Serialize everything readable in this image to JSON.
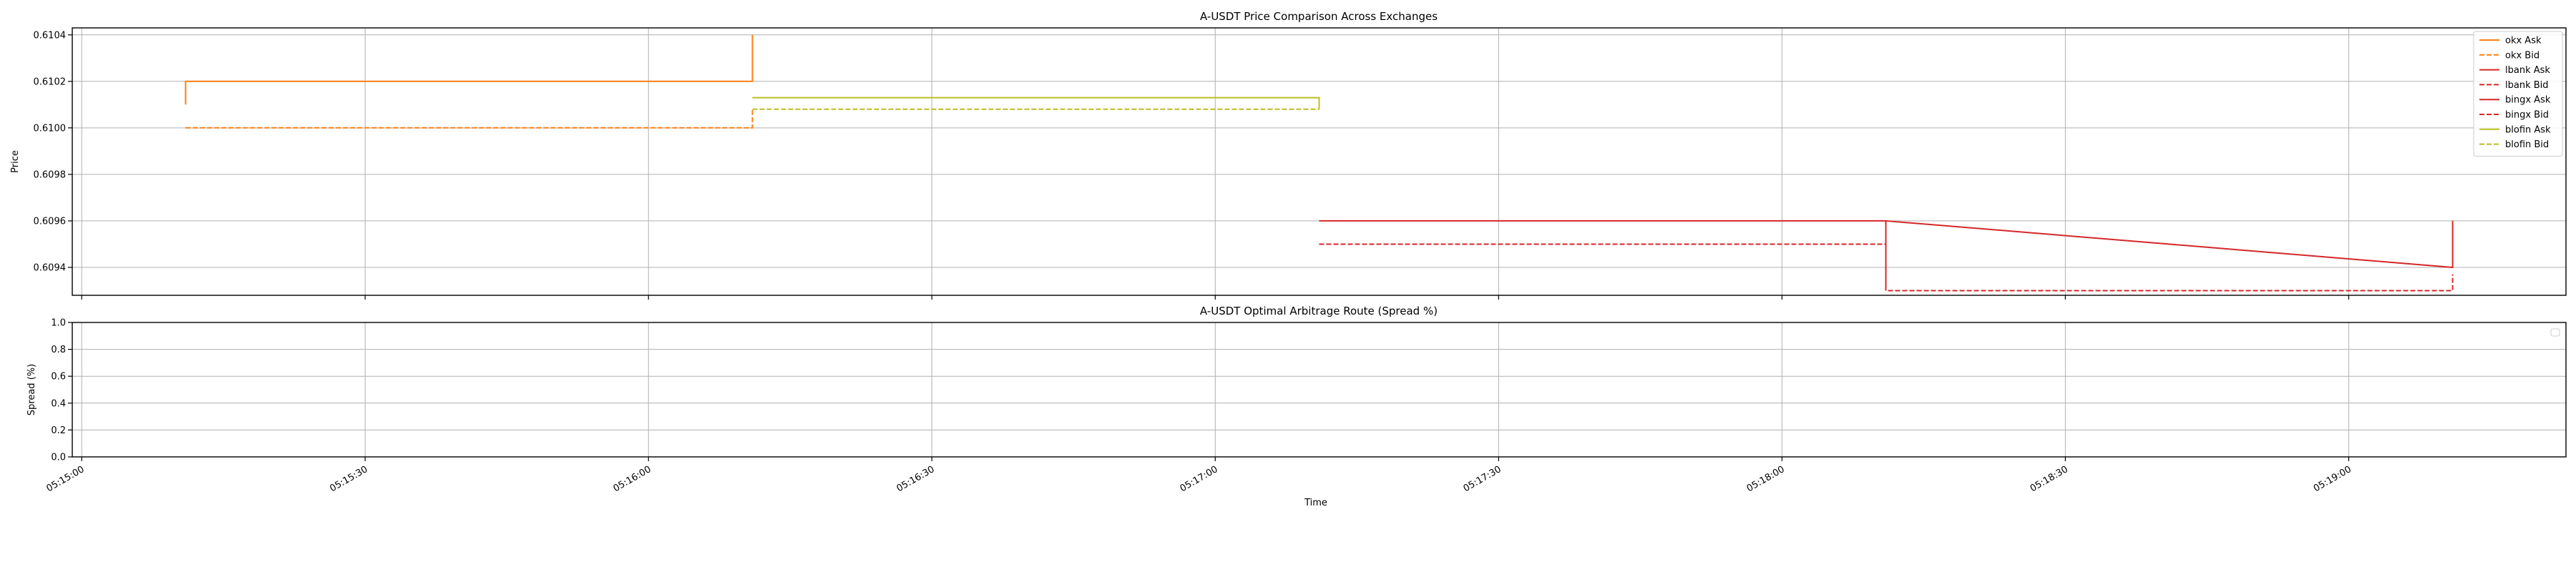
{
  "chart_data": [
    {
      "type": "line",
      "title": "A-USDT Price Comparison Across Exchanges",
      "xlabel": "",
      "ylabel": "Price",
      "xlim": [
        "05:14:59",
        "05:19:23"
      ],
      "ylim": [
        0.60928,
        0.61043
      ],
      "yticks": [
        0.6094,
        0.6096,
        0.6098,
        0.61,
        0.6102,
        0.6104
      ],
      "ytick_labels": [
        "0.6094",
        "0.6096",
        "0.6098",
        "0.6100",
        "0.6102",
        "0.6104"
      ],
      "grid": true,
      "legend_position": "upper right",
      "series": [
        {
          "name": "okx Ask",
          "color": "#ff7f0e",
          "dash": "solid",
          "points": [
            [
              "05:15:11",
              0.6101
            ],
            [
              "05:15:11",
              0.6102
            ],
            [
              "05:16:11",
              0.6102
            ],
            [
              "05:16:11",
              0.6104
            ]
          ]
        },
        {
          "name": "okx Bid",
          "color": "#ff7f0e",
          "dash": "dashed",
          "points": [
            [
              "05:15:11",
              0.61
            ],
            [
              "05:16:11",
              0.61
            ],
            [
              "05:16:11",
              0.61008
            ]
          ]
        },
        {
          "name": "lbank Ask",
          "color": "#d62728",
          "dash": "solid",
          "points": [
            [
              "05:17:11",
              0.6096
            ],
            [
              "05:18:11",
              0.6096
            ],
            [
              "05:18:11",
              0.6093
            ],
            [
              "05:18:11",
              0.6096
            ],
            [
              "05:19:11",
              0.6094
            ],
            [
              "05:19:11",
              0.6096
            ]
          ]
        },
        {
          "name": "lbank Bid",
          "color": "#d62728",
          "dash": "dashed",
          "points": [
            [
              "05:17:11",
              0.6095
            ],
            [
              "05:18:11",
              0.6095
            ],
            [
              "05:18:11",
              0.6093
            ],
            [
              "05:19:11",
              0.6093
            ],
            [
              "05:19:11",
              0.60937
            ]
          ]
        },
        {
          "name": "bingx Ask",
          "color": "#d62728",
          "dash": "solid",
          "points": []
        },
        {
          "name": "bingx Bid",
          "color": "#d62728",
          "dash": "dashed",
          "points": []
        },
        {
          "name": "blofin Ask",
          "color": "#bcbd22",
          "dash": "solid",
          "points": [
            [
              "05:16:11",
              0.61013
            ],
            [
              "05:17:11",
              0.61013
            ],
            [
              "05:17:11",
              0.61008
            ]
          ]
        },
        {
          "name": "blofin Bid",
          "color": "#bcbd22",
          "dash": "dashed",
          "points": [
            [
              "05:16:11",
              0.61008
            ],
            [
              "05:17:11",
              0.61008
            ]
          ]
        }
      ]
    },
    {
      "type": "line",
      "title": "A-USDT Optimal Arbitrage Route (Spread %)",
      "xlabel": "Time",
      "ylabel": "Spread (%)",
      "xlim": [
        "05:14:59",
        "05:19:23"
      ],
      "ylim": [
        0.0,
        1.0
      ],
      "yticks": [
        0.0,
        0.2,
        0.4,
        0.6,
        0.8,
        1.0
      ],
      "ytick_labels": [
        "0.0",
        "0.2",
        "0.4",
        "0.6",
        "0.8",
        "1.0"
      ],
      "xticks": [
        "05:15:00",
        "05:15:30",
        "05:16:00",
        "05:16:30",
        "05:17:00",
        "05:17:30",
        "05:18:00",
        "05:18:30",
        "05:19:00"
      ],
      "grid": true,
      "series": []
    }
  ]
}
